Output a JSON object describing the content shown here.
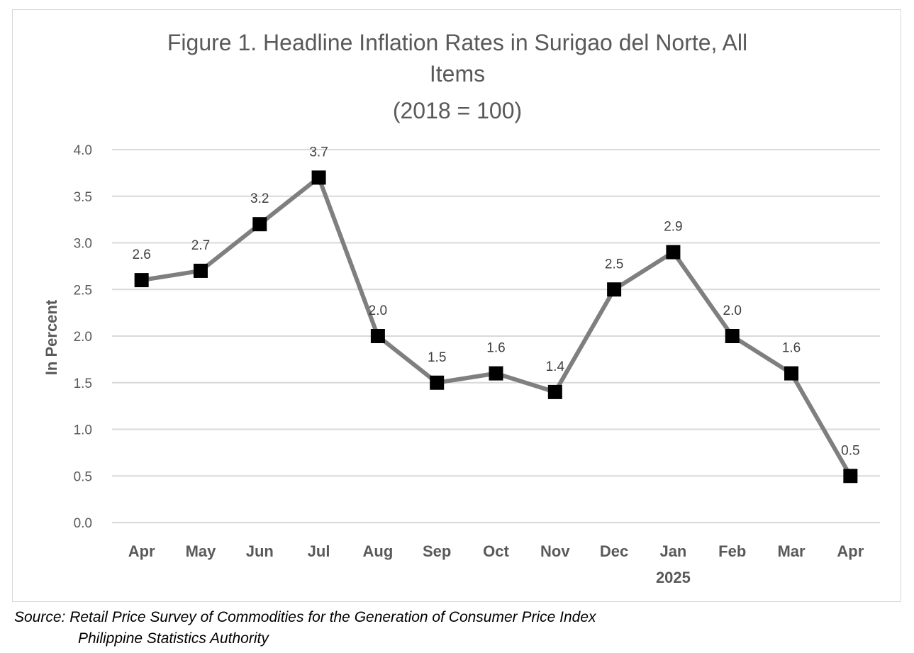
{
  "chart_data": {
    "type": "line",
    "title_lines": [
      "Figure 1.  Headline Inflation Rates in Surigao del Norte, All",
      "Items",
      "(2018 = 100)"
    ],
    "ylabel": "In Percent",
    "ylim": [
      0,
      4
    ],
    "yticks": [
      "0.0",
      "0.5",
      "1.0",
      "1.5",
      "2.0",
      "2.5",
      "3.0",
      "3.5",
      "4.0"
    ],
    "categories": [
      "Apr",
      "May",
      "Jun",
      "Jul",
      "Aug",
      "Sep",
      "Oct",
      "Nov",
      "Dec",
      "Jan",
      "Feb",
      "Mar",
      "Apr"
    ],
    "year_label": "2025",
    "year_label_index": 9,
    "series": [
      {
        "values": [
          2.6,
          2.7,
          3.2,
          3.7,
          2.0,
          1.5,
          1.6,
          1.4,
          2.5,
          2.9,
          2.0,
          1.6,
          0.5
        ]
      }
    ],
    "data_labels": [
      "2.6",
      "2.7",
      "3.2",
      "3.7",
      "2.0",
      "1.5",
      "1.6",
      "1.4",
      "2.5",
      "2.9",
      "2.0",
      "1.6",
      "0.5"
    ],
    "grid": true,
    "legend": "none",
    "colors": {
      "line": "#7f7f7f",
      "marker": "#000000",
      "grid": "#d9d9d9",
      "text": "#595959"
    }
  },
  "source": {
    "line1": "Source: Retail Price Survey of Commodities for the Generation of Consumer Price Index",
    "line2": "Philippine Statistics Authority"
  }
}
